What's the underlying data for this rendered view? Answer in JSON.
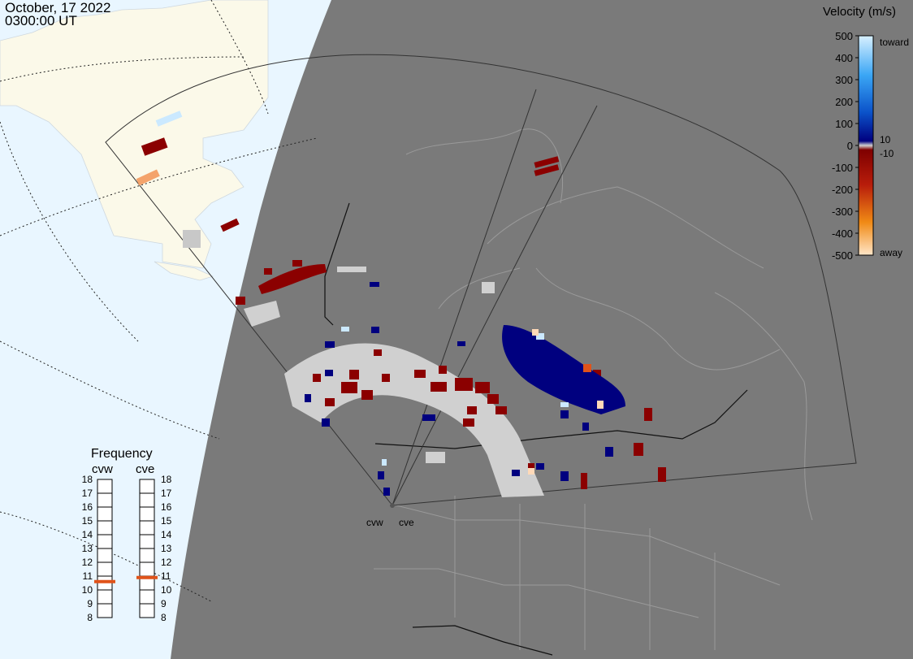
{
  "timestamp": {
    "date": "October, 17 2022",
    "time": "0300:00 UT"
  },
  "legend": {
    "title": "Velocity (m/s)",
    "ticks": [
      "500",
      "400",
      "300",
      "200",
      "100",
      "0",
      "-100",
      "-200",
      "-300",
      "-400",
      "-500"
    ],
    "toward_label": "toward",
    "away_label": "away",
    "threshold_pos": "10",
    "threshold_neg": "-10",
    "colors": {
      "toward_light": "#cbe9ff",
      "toward_mid": "#1e90ff",
      "toward_dark": "#00007f",
      "ground_scatter": "#d0d0d0",
      "away_dark": "#8b0000",
      "away_mid": "#e0531a",
      "away_light": "#ffd9b8"
    }
  },
  "frequency_panel": {
    "title": "Frequency",
    "radars": [
      {
        "name": "cvw",
        "frequency_mhz": 10.6
      },
      {
        "name": "cve",
        "frequency_mhz": 10.9
      }
    ],
    "scale": [
      "18",
      "17",
      "16",
      "15",
      "14",
      "13",
      "12",
      "11",
      "10",
      "9",
      "8"
    ],
    "marker_color": "#e0531a"
  },
  "radars": {
    "site_labels": [
      "cvw",
      "cve"
    ]
  },
  "map_colors": {
    "ocean": "#e9f6ff",
    "land_sunlit": "#fbf9e9",
    "night": "#7a7a7a",
    "borders": "#bcbcbc"
  }
}
